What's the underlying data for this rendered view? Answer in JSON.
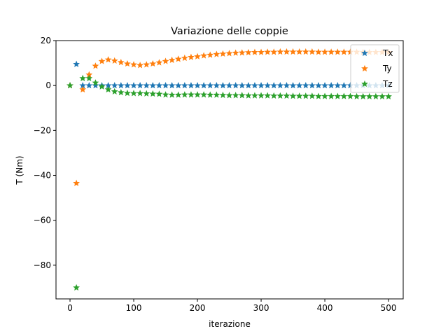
{
  "chart_data": {
    "type": "scatter",
    "title": "Variazione delle coppie",
    "xlabel": "iterazione",
    "ylabel": "T (Nm)",
    "xlim": [
      -22,
      523
    ],
    "ylim": [
      -95,
      20
    ],
    "xticks": [
      0,
      100,
      200,
      300,
      400,
      500
    ],
    "yticks": [
      20,
      0,
      -20,
      -40,
      -60,
      -80
    ],
    "xtick_labels": [
      "0",
      "100",
      "200",
      "300",
      "400",
      "500"
    ],
    "ytick_labels": [
      "20",
      "0",
      "−20",
      "−40",
      "−60",
      "−80"
    ],
    "grid": false,
    "legend_position": "top-right",
    "marker": "star",
    "x": [
      0,
      10,
      20,
      30,
      40,
      50,
      60,
      70,
      80,
      90,
      100,
      110,
      120,
      130,
      140,
      150,
      160,
      170,
      180,
      190,
      200,
      210,
      220,
      230,
      240,
      250,
      260,
      270,
      280,
      290,
      300,
      310,
      320,
      330,
      340,
      350,
      360,
      370,
      380,
      390,
      400,
      410,
      420,
      430,
      440,
      450,
      460,
      470,
      480,
      490,
      500
    ],
    "series": [
      {
        "name": "Tx",
        "color": "#1f77b4",
        "values": [
          0,
          9.5,
          0,
          0,
          0,
          0,
          0,
          0,
          0,
          0,
          0,
          0,
          0,
          0,
          0,
          0,
          0,
          0,
          0,
          0,
          0,
          0,
          0,
          0,
          0,
          0,
          0,
          0,
          0,
          0,
          0,
          0,
          0,
          0,
          0,
          0,
          0,
          0,
          0,
          0,
          0,
          0,
          0,
          0,
          0,
          0,
          0,
          0,
          0,
          0,
          0
        ]
      },
      {
        "name": "Ty",
        "color": "#ff7f0e",
        "values": [
          0,
          -43.5,
          -1.8,
          4.8,
          8.7,
          10.8,
          11.5,
          11.0,
          10.3,
          9.7,
          9.3,
          9.0,
          9.3,
          9.7,
          10.2,
          10.8,
          11.3,
          11.8,
          12.2,
          12.6,
          12.9,
          13.3,
          13.6,
          13.9,
          14.1,
          14.3,
          14.5,
          14.6,
          14.7,
          14.8,
          14.8,
          14.9,
          14.9,
          15.0,
          15.0,
          15.0,
          15.0,
          15.0,
          15.0,
          14.9,
          14.9,
          14.9,
          14.9,
          14.9,
          14.9,
          14.9,
          14.8,
          14.8,
          14.8,
          14.8,
          14.8
        ]
      },
      {
        "name": "Tz",
        "color": "#2ca02c",
        "values": [
          0,
          -90,
          3.2,
          3.2,
          1.2,
          -0.5,
          -1.8,
          -2.7,
          -3.1,
          -3.4,
          -3.5,
          -3.5,
          -3.6,
          -3.7,
          -3.8,
          -4.1,
          -4.2,
          -4.2,
          -4.1,
          -4.1,
          -4.1,
          -4.1,
          -4.2,
          -4.2,
          -4.3,
          -4.4,
          -4.4,
          -4.4,
          -4.5,
          -4.5,
          -4.5,
          -4.5,
          -4.6,
          -4.6,
          -4.6,
          -4.7,
          -4.7,
          -4.7,
          -4.7,
          -4.8,
          -4.8,
          -4.8,
          -4.8,
          -4.8,
          -4.8,
          -4.9,
          -4.9,
          -4.9,
          -4.9,
          -4.9,
          -4.9
        ]
      }
    ]
  }
}
